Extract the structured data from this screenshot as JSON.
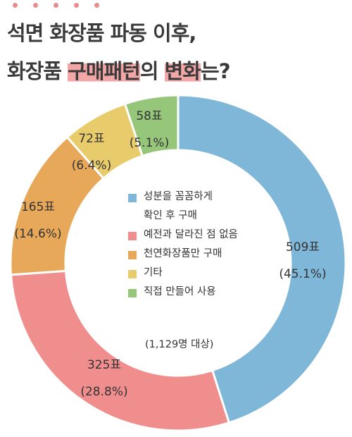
{
  "title": {
    "line1": "석면 화장품 파동 이후,",
    "line2_pre": "화장품 ",
    "line2_hl1": "구매패턴",
    "line2_mid": "의 ",
    "line2_hl2": "변화",
    "line2_post": "는?"
  },
  "note": "(1,129명 대상)",
  "colors": {
    "accent": "#e98c8c",
    "highlight": "#f2a6a6"
  },
  "chart_data": {
    "type": "pie",
    "donut": true,
    "start_angle_deg": 0,
    "direction": "clockwise",
    "slices": [
      {
        "label": "성분을 꼼꼼하게\n확인 후 구매",
        "value": 509,
        "value_label": "509표",
        "pct_label": "(45.1%)",
        "color": "#7fb7d9"
      },
      {
        "label": "예전과 달라진 점 없음",
        "value": 325,
        "value_label": "325표",
        "pct_label": "(28.8%)",
        "color": "#f08e8e"
      },
      {
        "label": "천연화장품만 구매",
        "value": 165,
        "value_label": "165표",
        "pct_label": "(14.6%)",
        "color": "#e8a85a"
      },
      {
        "label": "기타",
        "value": 72,
        "value_label": "72표",
        "pct_label": "(6.4%)",
        "color": "#e8cc6c"
      },
      {
        "label": "직접 만들어 사용",
        "value": 58,
        "value_label": "58표",
        "pct_label": "(5.1%)",
        "color": "#96c67a"
      }
    ]
  }
}
